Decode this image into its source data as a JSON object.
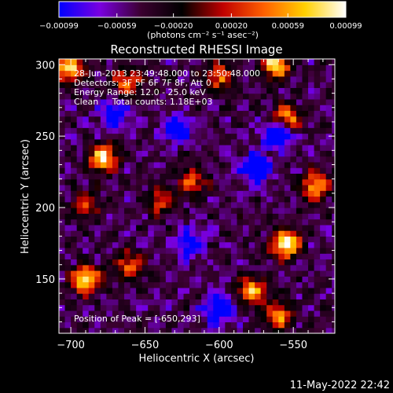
{
  "chart_data": {
    "type": "heatmap",
    "title": "Reconstructed RHESSI Image",
    "xlabel": "Heliocentric X (arcsec)",
    "ylabel": "Heliocentric Y (arcsec)",
    "xlim": [
      -708,
      -522
    ],
    "ylim": [
      112,
      304
    ],
    "x_ticks": [
      -700,
      -650,
      -600,
      -550
    ],
    "x_tick_labels": [
      "−700",
      "−650",
      "−600",
      "−550"
    ],
    "y_ticks": [
      150,
      200,
      250,
      300
    ],
    "y_tick_labels": [
      "150",
      "200",
      "250",
      "300"
    ],
    "colorbar": {
      "min": -0.00099,
      "max": 0.00099,
      "ticks": [
        -0.00099,
        -0.00059,
        -0.0002,
        0.0002,
        0.00059,
        0.00099
      ],
      "tick_labels": [
        "−0.00099",
        "−0.00059",
        "−0.00020",
        "0.00020",
        "0.00059",
        "0.00099"
      ],
      "units": "(photons cm⁻² s⁻¹ asec⁻²)",
      "colormap": [
        "#0000ff",
        "#7a00e0",
        "#3b0030",
        "#000000",
        "#c00000",
        "#ff6000",
        "#ffd000",
        "#ffffff"
      ]
    },
    "annotations": [
      "28-Jun-2013 23:49:48.000 to 23:50:48.000",
      "Detectors: 3F 5F 6F 7F 8F, Att 0",
      "Energy Range: 12.0 - 25.0 keV",
      "Clean     Total counts: 1.18E+03"
    ],
    "peak_label": "Position of Peak = [-650,293]",
    "peak": [
      -650,
      293
    ],
    "bright_sources": [
      {
        "x": -700,
        "y": 298,
        "intensity": 0.8
      },
      {
        "x": -662,
        "y": 288,
        "intensity": 0.6
      },
      {
        "x": -600,
        "y": 292,
        "intensity": 0.55
      },
      {
        "x": -562,
        "y": 300,
        "intensity": 0.85
      },
      {
        "x": -678,
        "y": 235,
        "intensity": 0.8
      },
      {
        "x": -690,
        "y": 202,
        "intensity": 0.45
      },
      {
        "x": -618,
        "y": 218,
        "intensity": 0.5
      },
      {
        "x": -555,
        "y": 262,
        "intensity": 0.75
      },
      {
        "x": -535,
        "y": 215,
        "intensity": 0.7
      },
      {
        "x": -555,
        "y": 175,
        "intensity": 0.95
      },
      {
        "x": -578,
        "y": 142,
        "intensity": 0.7
      },
      {
        "x": -690,
        "y": 150,
        "intensity": 0.85
      },
      {
        "x": -660,
        "y": 160,
        "intensity": 0.55
      },
      {
        "x": -640,
        "y": 205,
        "intensity": 0.45
      },
      {
        "x": -560,
        "y": 125,
        "intensity": 0.6
      }
    ],
    "dark_regions": [
      {
        "x": -560,
        "y": 252,
        "intensity": -0.8
      },
      {
        "x": -575,
        "y": 228,
        "intensity": -0.6
      },
      {
        "x": -670,
        "y": 265,
        "intensity": -0.5
      },
      {
        "x": -628,
        "y": 255,
        "intensity": -0.55
      },
      {
        "x": -620,
        "y": 175,
        "intensity": -0.5
      },
      {
        "x": -600,
        "y": 130,
        "intensity": -0.6
      }
    ]
  },
  "timestamp": "11-May-2022 22:42"
}
